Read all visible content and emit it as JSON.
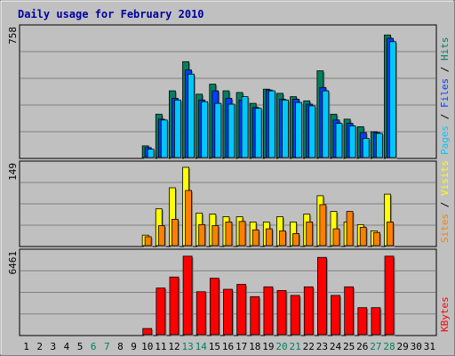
{
  "chart_data": {
    "type": "bar",
    "title": "Daily usage for February 2010",
    "days": [
      "1",
      "2",
      "3",
      "4",
      "5",
      "6",
      "7",
      "8",
      "9",
      "10",
      "11",
      "12",
      "13",
      "14",
      "15",
      "16",
      "17",
      "18",
      "19",
      "20",
      "21",
      "22",
      "23",
      "24",
      "25",
      "26",
      "27",
      "28",
      "29",
      "30",
      "31"
    ],
    "weekend_days": [
      "6",
      "7",
      "13",
      "14",
      "20",
      "21",
      "27",
      "28"
    ],
    "panels": [
      {
        "id": "hits-files-pages",
        "max_label": "758",
        "ymax": 758,
        "side_label_parts": [
          "Pages",
          " / ",
          "Files",
          " / ",
          "Hits"
        ],
        "side_label_colors": [
          "#00c8ff",
          "#000000",
          "#0040ff",
          "#000000",
          "#008060"
        ],
        "series": [
          {
            "name": "Hits",
            "color": "#008060",
            "values": [
              0,
              0,
              0,
              0,
              0,
              0,
              0,
              0,
              0,
              70,
              260,
              400,
              575,
              380,
              440,
              400,
              390,
              325,
              410,
              385,
              365,
              340,
              520,
              260,
              230,
              185,
              155,
              735,
              0,
              0,
              0
            ]
          },
          {
            "name": "Files",
            "color": "#0040ff",
            "values": [
              0,
              0,
              0,
              0,
              0,
              0,
              0,
              0,
              0,
              60,
              230,
              355,
              525,
              345,
              400,
              355,
              345,
              300,
              405,
              350,
              350,
              320,
              420,
              225,
              205,
              150,
              150,
              715,
              0,
              0,
              0
            ]
          },
          {
            "name": "Pages",
            "color": "#00c8ff",
            "values": [
              0,
              0,
              0,
              0,
              0,
              0,
              0,
              0,
              0,
              50,
              225,
              345,
              500,
              335,
              325,
              320,
              365,
              295,
              400,
              345,
              330,
              310,
              400,
              205,
              190,
              115,
              145,
              695,
              0,
              0,
              0
            ]
          }
        ]
      },
      {
        "id": "visits-sites",
        "max_label": "149",
        "ymax": 149,
        "side_label_parts": [
          "Sites",
          " / ",
          "Visits"
        ],
        "side_label_colors": [
          "#ff8000",
          "#000000",
          "#ffff00"
        ],
        "series": [
          {
            "name": "Visits",
            "color": "#ffff00",
            "values": [
              0,
              0,
              0,
              0,
              0,
              0,
              0,
              0,
              0,
              20,
              70,
              110,
              149,
              62,
              60,
              55,
              55,
              45,
              45,
              55,
              45,
              60,
              95,
              65,
              45,
              40,
              28,
              98,
              0,
              0,
              0
            ]
          },
          {
            "name": "Sites",
            "color": "#ff8000",
            "values": [
              0,
              0,
              0,
              0,
              0,
              0,
              0,
              0,
              0,
              17,
              38,
              50,
              105,
              40,
              38,
              45,
              46,
              30,
              32,
              28,
              23,
              45,
              78,
              32,
              65,
              35,
              25,
              45,
              0,
              0,
              0
            ]
          }
        ]
      },
      {
        "id": "kbytes",
        "max_label": "6461",
        "ymax": 6461,
        "side_label_parts": [
          "KBytes"
        ],
        "side_label_colors": [
          "#ff0000"
        ],
        "series": [
          {
            "name": "KBytes",
            "color": "#ff0000",
            "values": [
              0,
              0,
              0,
              0,
              0,
              0,
              0,
              0,
              0,
              500,
              3800,
              4700,
              6400,
              3500,
              4600,
              3700,
              4100,
              3100,
              3900,
              3600,
              3200,
              3900,
              6300,
              3200,
              3900,
              2200,
              2200,
              6400,
              0,
              0,
              0
            ]
          }
        ]
      }
    ]
  }
}
